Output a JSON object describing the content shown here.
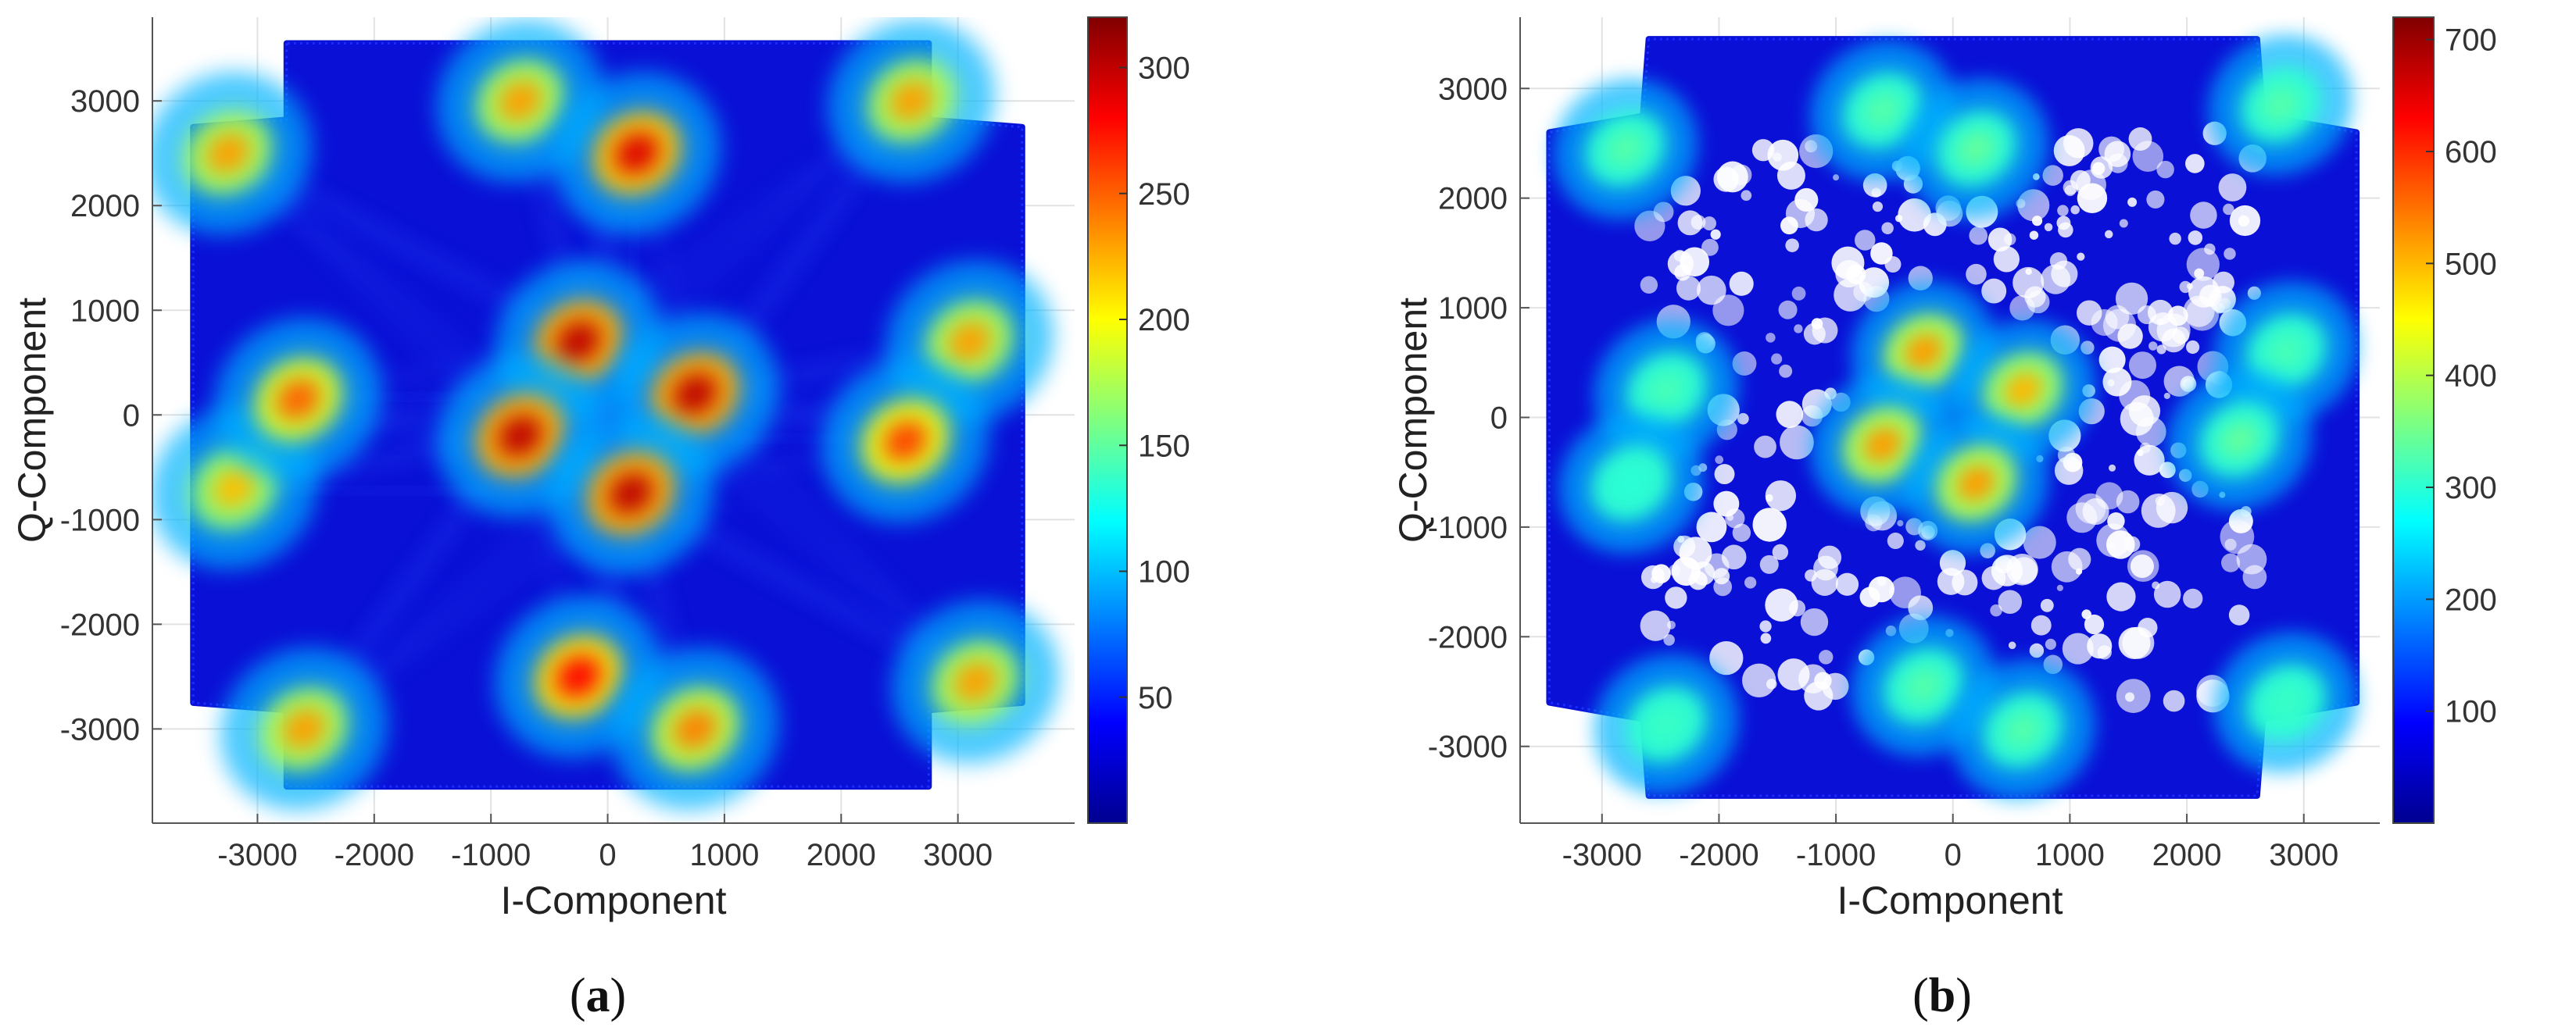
{
  "chart_data": [
    {
      "type": "heatmap",
      "caption": "a",
      "xlabel": "I-Component",
      "ylabel": "Q-Component",
      "xlim": [
        -3900,
        4000
      ],
      "ylim": [
        -3900,
        3800
      ],
      "x_ticks": [
        -3000,
        -2000,
        -1000,
        0,
        1000,
        2000,
        3000
      ],
      "y_ticks": [
        -3000,
        -2000,
        -1000,
        0,
        1000,
        2000,
        3000
      ],
      "colorbar": {
        "min": 0,
        "max": 320,
        "ticks": [
          50,
          100,
          150,
          200,
          250,
          300
        ]
      },
      "grid": true,
      "noise": {
        "outer": 3550,
        "inner": 2750,
        "bx": 2750,
        "by": 2820
      },
      "clusters": [
        {
          "x": -3250,
          "y": 2500,
          "v": 230
        },
        {
          "x": -750,
          "y": 3000,
          "v": 230
        },
        {
          "x": 250,
          "y": 2500,
          "v": 290
        },
        {
          "x": 2600,
          "y": 3000,
          "v": 230
        },
        {
          "x": -3200,
          "y": -700,
          "v": 220
        },
        {
          "x": -2650,
          "y": 150,
          "v": 250
        },
        {
          "x": 3100,
          "y": 700,
          "v": 230
        },
        {
          "x": 2550,
          "y": -250,
          "v": 260
        },
        {
          "x": -250,
          "y": 700,
          "v": 300
        },
        {
          "x": 750,
          "y": 200,
          "v": 300
        },
        {
          "x": -750,
          "y": -200,
          "v": 300
        },
        {
          "x": 200,
          "y": -750,
          "v": 300
        },
        {
          "x": -2600,
          "y": -3000,
          "v": 230
        },
        {
          "x": -250,
          "y": -2500,
          "v": 280
        },
        {
          "x": 750,
          "y": -3000,
          "v": 240
        },
        {
          "x": 3150,
          "y": -2550,
          "v": 230
        }
      ]
    },
    {
      "type": "heatmap",
      "caption": "b",
      "xlabel": "I-Component",
      "ylabel": "Q-Component",
      "xlim": [
        -3700,
        3650
      ],
      "ylim": [
        -3700,
        3650
      ],
      "x_ticks": [
        -3000,
        -2000,
        -1000,
        0,
        1000,
        2000,
        3000
      ],
      "y_ticks": [
        -3000,
        -2000,
        -1000,
        0,
        1000,
        2000,
        3000
      ],
      "colorbar": {
        "min": 0,
        "max": 720,
        "ticks": [
          100,
          200,
          300,
          400,
          500,
          600,
          700
        ]
      },
      "grid": true,
      "noise": {
        "outer": 3450,
        "inner": 2600,
        "bx": 2650,
        "by": 2750
      },
      "clusters": [
        {
          "x": -2800,
          "y": 2450,
          "v": 330
        },
        {
          "x": -600,
          "y": 2800,
          "v": 330
        },
        {
          "x": 200,
          "y": 2450,
          "v": 340
        },
        {
          "x": 2800,
          "y": 2850,
          "v": 330
        },
        {
          "x": -2450,
          "y": 250,
          "v": 320
        },
        {
          "x": -2750,
          "y": -600,
          "v": 300
        },
        {
          "x": 2850,
          "y": 600,
          "v": 320
        },
        {
          "x": 2450,
          "y": -200,
          "v": 340
        },
        {
          "x": -250,
          "y": 600,
          "v": 520
        },
        {
          "x": 600,
          "y": 250,
          "v": 500
        },
        {
          "x": -600,
          "y": -250,
          "v": 520
        },
        {
          "x": 200,
          "y": -600,
          "v": 520
        },
        {
          "x": -2450,
          "y": -2800,
          "v": 310
        },
        {
          "x": -250,
          "y": -2450,
          "v": 330
        },
        {
          "x": 600,
          "y": -2850,
          "v": 330
        },
        {
          "x": 2850,
          "y": -2600,
          "v": 310
        }
      ]
    }
  ]
}
